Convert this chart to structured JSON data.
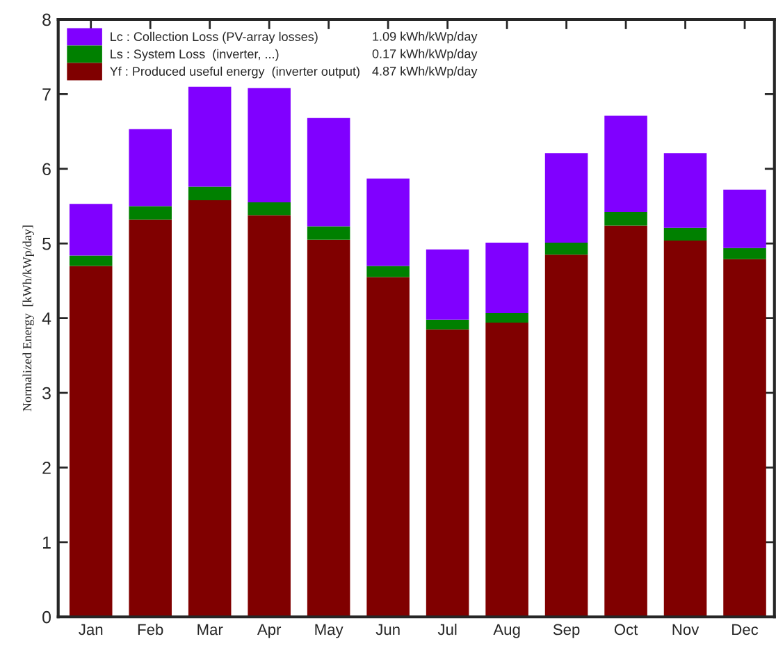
{
  "chart_data": {
    "type": "bar",
    "stacked": true,
    "ylabel": "Normalized Energy  [kWh/kWp/day]",
    "categories": [
      "Jan",
      "Feb",
      "Mar",
      "Apr",
      "May",
      "Jun",
      "Jul",
      "Aug",
      "Sep",
      "Oct",
      "Nov",
      "Dec"
    ],
    "series": [
      {
        "name": "Yf : Produced useful energy  (inverter output)",
        "color": "#800000",
        "values": [
          4.7,
          5.32,
          5.58,
          5.38,
          5.05,
          4.55,
          3.85,
          3.94,
          4.85,
          5.24,
          5.04,
          4.79
        ]
      },
      {
        "name": "Ls : System Loss  (inverter, ...)",
        "color": "#008000",
        "values": [
          0.14,
          0.18,
          0.18,
          0.17,
          0.18,
          0.15,
          0.13,
          0.13,
          0.16,
          0.18,
          0.17,
          0.15
        ]
      },
      {
        "name": "Lc : Collection Loss (PV-array losses)",
        "color": "#8000ff",
        "values": [
          0.69,
          1.03,
          1.34,
          1.53,
          1.45,
          1.17,
          0.94,
          0.94,
          1.2,
          1.29,
          1.0,
          0.78
        ]
      }
    ],
    "annotations": [
      "4.87 kWh/kWp/day",
      "0.17 kWh/kWp/day",
      "1.09 kWh/kWp/day"
    ],
    "ylim": [
      0,
      8
    ],
    "yticks": [
      0,
      1,
      2,
      3,
      4,
      5,
      6,
      7,
      8
    ],
    "legend": "top left",
    "grid": false
  }
}
